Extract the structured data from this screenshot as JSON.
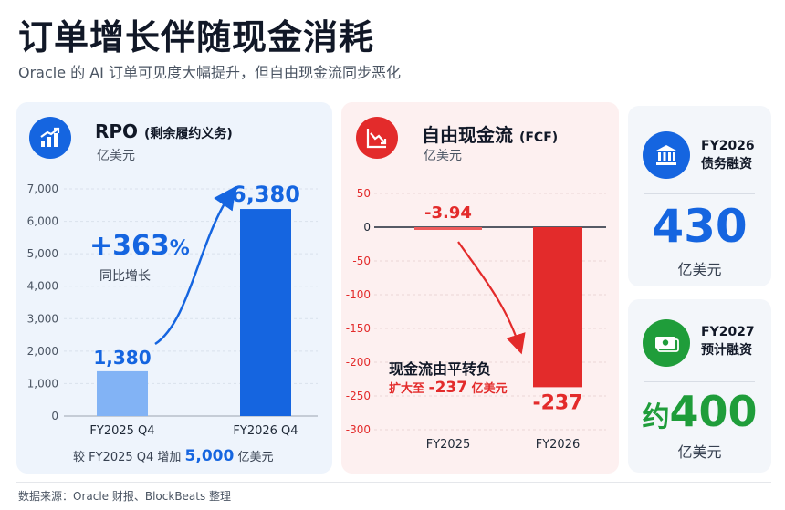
{
  "header": {
    "title": "订单增长伴随现金消耗",
    "subtitle": "Oracle 的 AI 订单可见度大幅提升，但自由现金流同步恶化"
  },
  "rpo_panel": {
    "title_main": "RPO",
    "title_paren": "(剩余履约义务)",
    "unit": "亿美元",
    "growth_value": "+363",
    "growth_pct": "%",
    "growth_label": "同比增长",
    "note_prefix": "较 FY2025 Q4 增加",
    "note_value": "5,000",
    "note_suffix": "亿美元",
    "icon": "chart-growth-icon"
  },
  "fcf_panel": {
    "title_main": "自由现金流",
    "title_paren": "(FCF)",
    "unit": "亿美元",
    "annotation_line1": "现金流由平转负",
    "annotation_line2_prefix": "扩大至",
    "annotation_line2_value": "-237",
    "annotation_line2_suffix": "亿美元",
    "icon": "chart-decline-icon"
  },
  "side_debt": {
    "year": "FY2026",
    "label": "债务融资",
    "value": "430",
    "unit": "亿美元",
    "icon": "bank-icon"
  },
  "side_plan": {
    "year": "FY2027",
    "label": "预计融资",
    "prefix": "约",
    "value": "400",
    "unit": "亿美元",
    "icon": "money-icon"
  },
  "footer": {
    "source": "数据来源：Oracle 财报、BlockBeats 整理"
  },
  "colors": {
    "blue": "#1565e0",
    "light_blue": "#82b3f5",
    "red": "#e32b2b",
    "light_red": "#ee5b5b",
    "green": "#1f9d3a"
  },
  "chart_data": [
    {
      "type": "bar",
      "categories": [
        "FY2025 Q4",
        "FY2026 Q4"
      ],
      "values": [
        1380,
        6380
      ],
      "value_labels": [
        "1,380",
        "6,380"
      ],
      "ylim": [
        0,
        7000
      ],
      "yticks": [
        0,
        1000,
        2000,
        3000,
        4000,
        5000,
        6000,
        7000
      ],
      "ytick_labels": [
        "0",
        "1,000",
        "2,000",
        "3,000",
        "4,000",
        "5,000",
        "6,000",
        "7,000"
      ],
      "grid": true
    },
    {
      "type": "bar",
      "categories": [
        "FY2025",
        "FY2026"
      ],
      "values": [
        -3.94,
        -237
      ],
      "value_labels": [
        "-3.94",
        "-237"
      ],
      "ylim": [
        -300,
        50
      ],
      "yticks": [
        50,
        0,
        -50,
        -100,
        -150,
        -200,
        -250,
        -300
      ],
      "ytick_labels": [
        "50",
        "0",
        "-50",
        "-100",
        "-150",
        "-200",
        "-250",
        "-300"
      ],
      "grid": true
    }
  ]
}
